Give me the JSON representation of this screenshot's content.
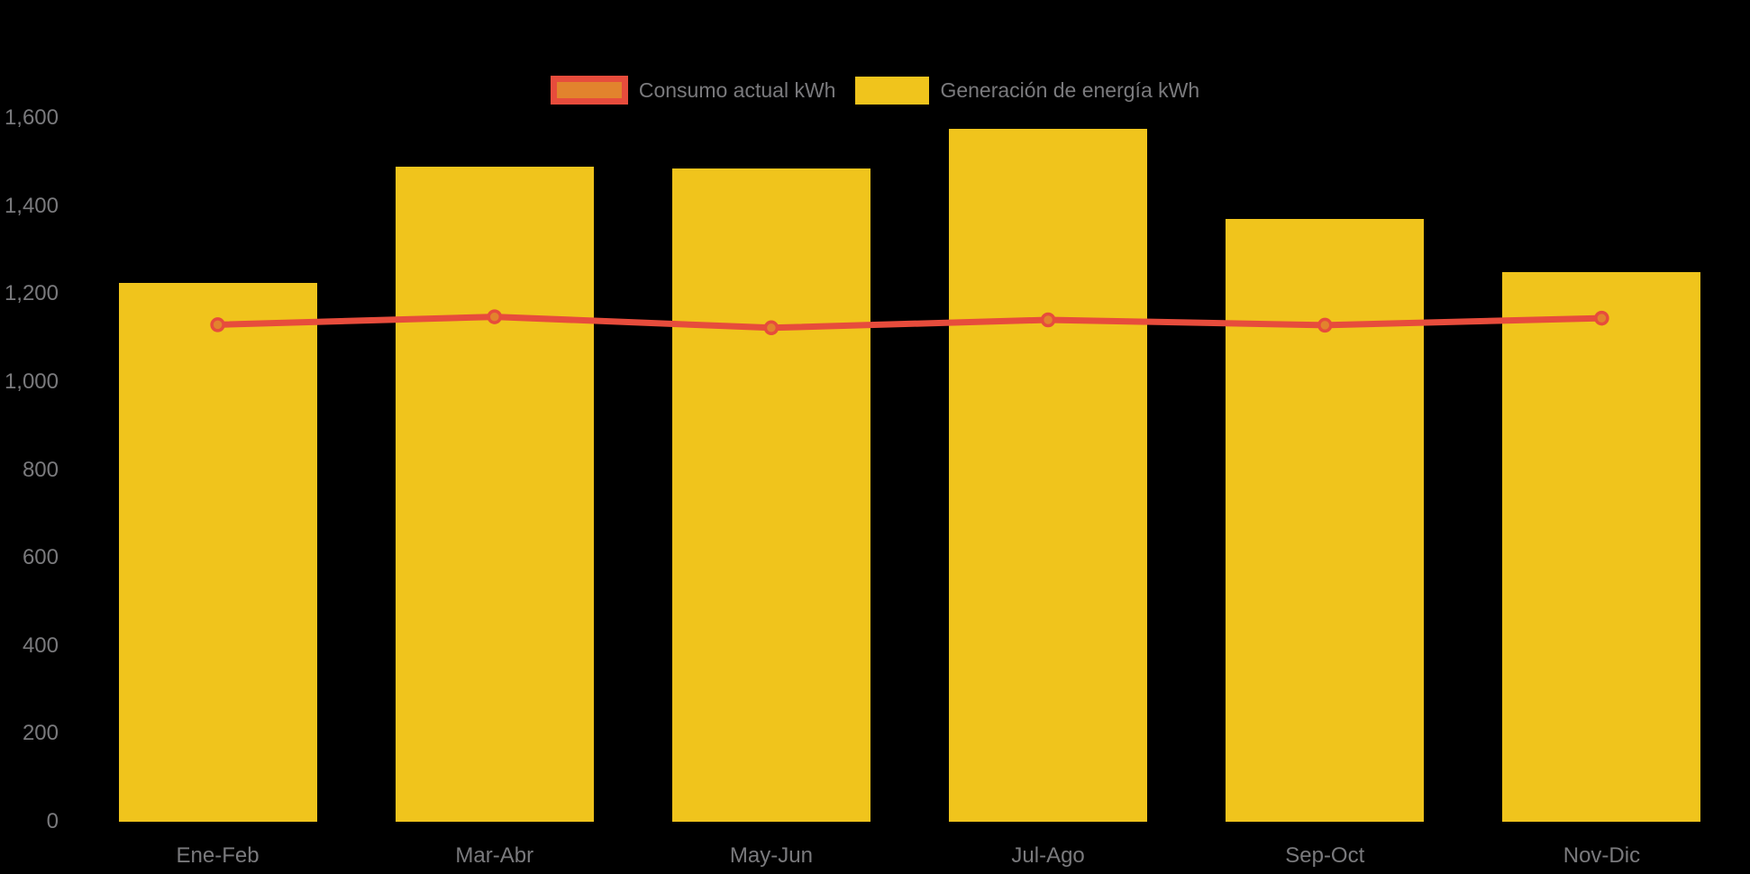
{
  "legend": {
    "items": [
      {
        "label": "Consumo actual kWh",
        "series": "consumo"
      },
      {
        "label": "Generación de energía kWh",
        "series": "generacion"
      }
    ]
  },
  "colors": {
    "background": "#000000",
    "bar_yellow": "#F0C41C",
    "line_red": "#E74C3C",
    "point_fill_orange": "#E2832D",
    "axis_text_gray": "#7A7A7D"
  },
  "chart_data": {
    "type": "bar",
    "subtype": "bar-line-combo",
    "title": "",
    "xlabel": "",
    "ylabel": "",
    "categories": [
      "Ene-Feb",
      "Mar-Abr",
      "May-Jun",
      "Jul-Ago",
      "Sep-Oct",
      "Nov-Dic"
    ],
    "series": [
      {
        "name": "Consumo actual kWh",
        "type": "line",
        "color": "#E74C3C",
        "point_fill": "#E2832D",
        "values": [
          1130,
          1148,
          1123,
          1141,
          1129,
          1145
        ]
      },
      {
        "name": "Generación de energía kWh",
        "type": "bar",
        "color": "#F0C41C",
        "values": [
          1225,
          1490,
          1485,
          1575,
          1370,
          1250
        ]
      }
    ],
    "ylim": [
      0,
      1600
    ],
    "yticks": [
      0,
      200,
      400,
      600,
      800,
      1000,
      1200,
      1400,
      1600
    ],
    "ytick_labels": [
      "0",
      "200",
      "400",
      "600",
      "800",
      "1,000",
      "1,200",
      "1,400",
      "1,600"
    ],
    "grid": false,
    "legend_position": "top-center"
  }
}
